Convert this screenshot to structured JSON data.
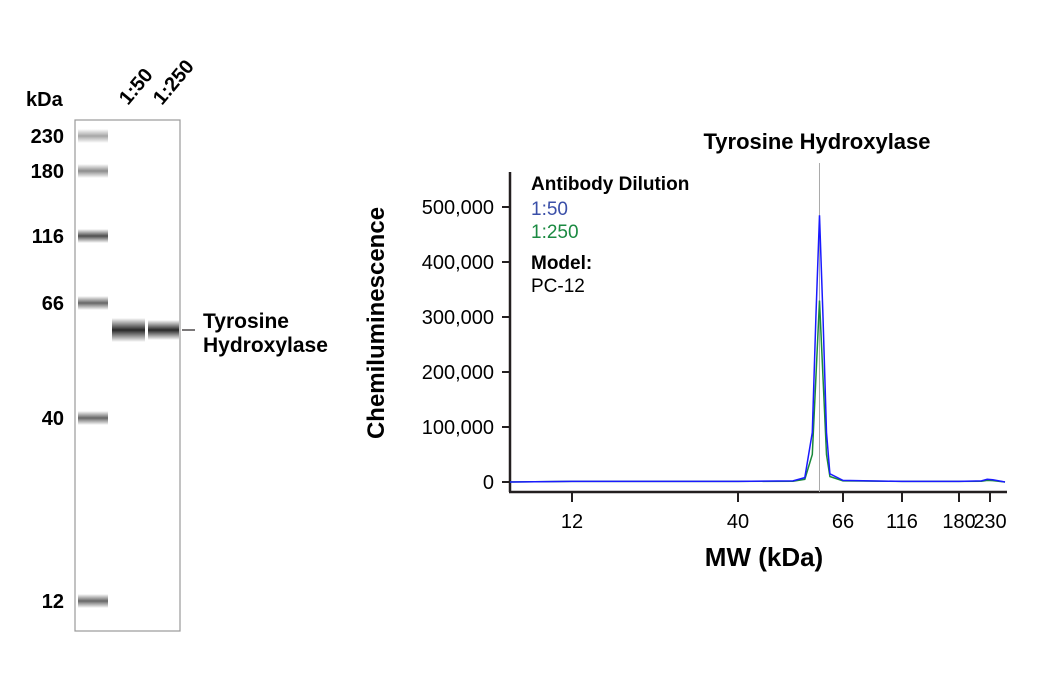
{
  "gel": {
    "unit_label": "kDa",
    "lanes": [
      "1:50",
      "1:250"
    ],
    "ladder": [
      "230",
      "180",
      "116",
      "66",
      "40",
      "12"
    ],
    "band_label_line1": "Tyrosine",
    "band_label_line2": "Hydroxylase"
  },
  "colors": {
    "series_1_50": "#1a1aff",
    "series_1_250": "#1a8a3a",
    "legend_1_50": "#3a4fa8",
    "legend_1_250": "#1b8a42"
  },
  "chart_data": {
    "type": "line",
    "title": "Tyrosine Hydroxylase",
    "xlabel": "MW (kDa)",
    "ylabel": "Chemiluminescence",
    "xticks": [
      "12",
      "40",
      "66",
      "116",
      "180",
      "230"
    ],
    "yticks": [
      "0",
      "100,000",
      "200,000",
      "300,000",
      "400,000",
      "500,000"
    ],
    "ylim": [
      0,
      560000
    ],
    "xlim": [
      7.7,
      258
    ],
    "xscale": "log (lane-calibrated)",
    "peak_marker_kDa": 59,
    "legend": {
      "heading": "Antibody Dilution",
      "entries": [
        "1:50",
        "1:250"
      ],
      "model_heading": "Model:",
      "model": "PC-12"
    },
    "series": [
      {
        "name": "1:50",
        "points": [
          [
            7.7,
            0
          ],
          [
            12,
            1000
          ],
          [
            40,
            1000
          ],
          [
            52,
            2000
          ],
          [
            55,
            8000
          ],
          [
            57,
            90000
          ],
          [
            58,
            300000
          ],
          [
            59,
            485000
          ],
          [
            60,
            300000
          ],
          [
            61,
            90000
          ],
          [
            62,
            15000
          ],
          [
            66,
            3000
          ],
          [
            116,
            1000
          ],
          [
            180,
            1000
          ],
          [
            215,
            2000
          ],
          [
            225,
            5000
          ],
          [
            235,
            4000
          ],
          [
            258,
            0
          ]
        ]
      },
      {
        "name": "1:250",
        "points": [
          [
            7.7,
            0
          ],
          [
            12,
            1000
          ],
          [
            40,
            1000
          ],
          [
            52,
            1500
          ],
          [
            55,
            5000
          ],
          [
            57,
            50000
          ],
          [
            58,
            190000
          ],
          [
            59,
            330000
          ],
          [
            60,
            190000
          ],
          [
            61,
            50000
          ],
          [
            62,
            10000
          ],
          [
            66,
            2000
          ],
          [
            116,
            1000
          ],
          [
            180,
            1000
          ],
          [
            215,
            1500
          ],
          [
            225,
            3000
          ],
          [
            235,
            2500
          ],
          [
            258,
            0
          ]
        ]
      }
    ]
  }
}
